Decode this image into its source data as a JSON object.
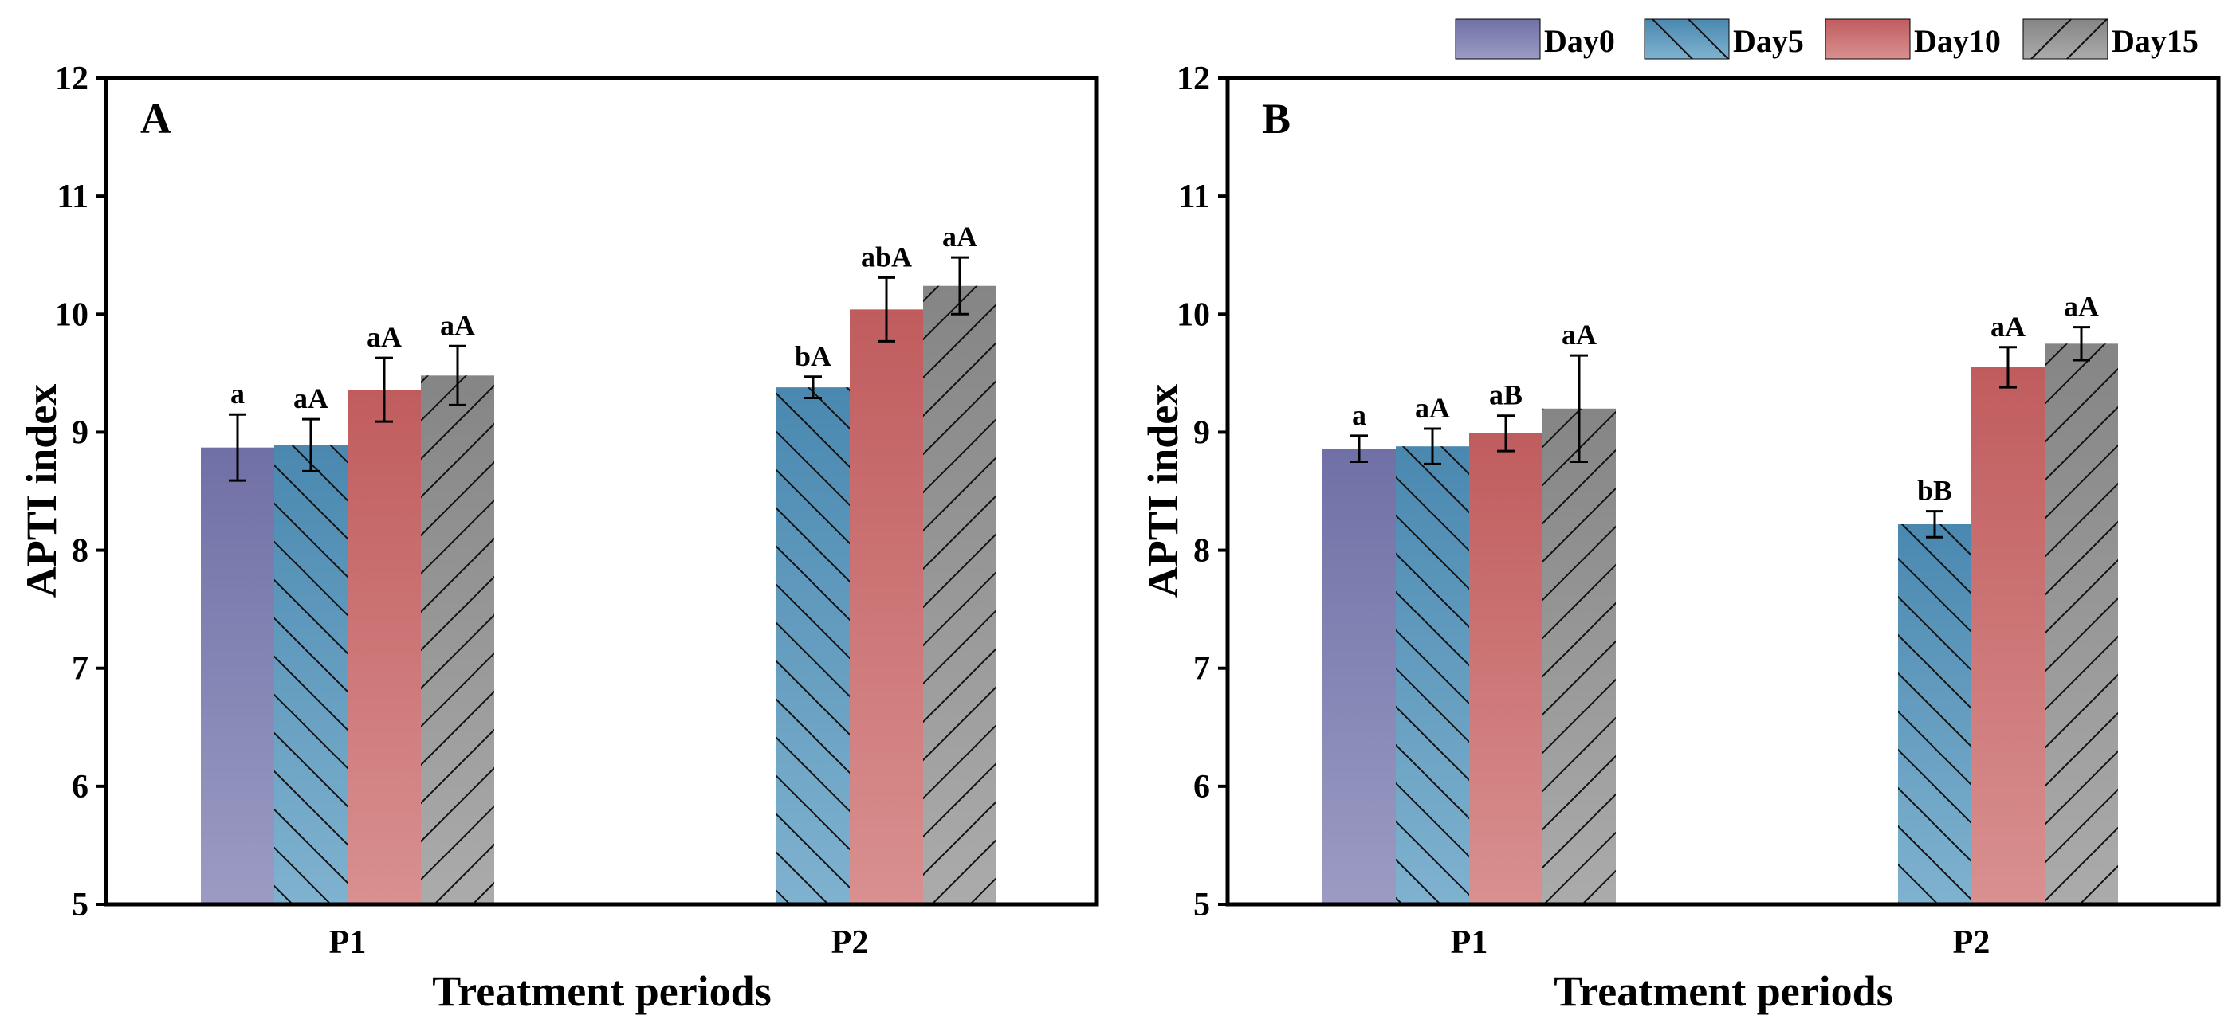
{
  "legend": [
    {
      "key": "day0",
      "label": "Day0"
    },
    {
      "key": "day5",
      "label": "Day5"
    },
    {
      "key": "day10",
      "label": "Day10"
    },
    {
      "key": "day15",
      "label": "Day15"
    }
  ],
  "series_style": {
    "day0": {
      "top": "#7070a6",
      "bottom": "#9b9bc4",
      "hatch": "none"
    },
    "day5": {
      "top": "#4a88b0",
      "bottom": "#7fb2cf",
      "hatch": "backslash"
    },
    "day10": {
      "top": "#c05c5e",
      "bottom": "#d99090",
      "hatch": "none"
    },
    "day15": {
      "top": "#858585",
      "bottom": "#ababab",
      "hatch": "slash"
    }
  },
  "chart_data": [
    {
      "type": "bar",
      "panel_label": "A",
      "xlabel": "Treatment periods",
      "ylabel": "APTI index",
      "ylim": [
        5,
        12
      ],
      "yticks": [
        "5",
        "6",
        "7",
        "8",
        "9",
        "10",
        "11",
        "12"
      ],
      "categories": [
        "P1",
        "P2"
      ],
      "series": [
        {
          "key": "day0",
          "name": "Day0",
          "values": [
            8.87,
            null
          ],
          "errors": [
            0.28,
            null
          ],
          "labels": [
            "a",
            null
          ]
        },
        {
          "key": "day5",
          "name": "Day5",
          "values": [
            8.89,
            9.38
          ],
          "errors": [
            0.22,
            0.09
          ],
          "labels": [
            "aA",
            "bA"
          ]
        },
        {
          "key": "day10",
          "name": "Day10",
          "values": [
            9.36,
            10.04
          ],
          "errors": [
            0.27,
            0.27
          ],
          "labels": [
            "aA",
            "abA"
          ]
        },
        {
          "key": "day15",
          "name": "Day15",
          "values": [
            9.48,
            10.24
          ],
          "errors": [
            0.25,
            0.24
          ],
          "labels": [
            "aA",
            "aA"
          ]
        }
      ]
    },
    {
      "type": "bar",
      "panel_label": "B",
      "xlabel": "Treatment periods",
      "ylabel": "APTI index",
      "ylim": [
        5,
        12
      ],
      "yticks": [
        "5",
        "6",
        "7",
        "8",
        "9",
        "10",
        "11",
        "12"
      ],
      "categories": [
        "P1",
        "P2"
      ],
      "series": [
        {
          "key": "day0",
          "name": "Day0",
          "values": [
            8.86,
            null
          ],
          "errors": [
            0.11,
            null
          ],
          "labels": [
            "a",
            null
          ]
        },
        {
          "key": "day5",
          "name": "Day5",
          "values": [
            8.88,
            8.22
          ],
          "errors": [
            0.15,
            0.11
          ],
          "labels": [
            "aA",
            "bB"
          ]
        },
        {
          "key": "day10",
          "name": "Day10",
          "values": [
            8.99,
            9.55
          ],
          "errors": [
            0.15,
            0.17
          ],
          "labels": [
            "aB",
            "aA"
          ]
        },
        {
          "key": "day15",
          "name": "Day15",
          "values": [
            9.2,
            9.75
          ],
          "errors": [
            0.45,
            0.14
          ],
          "labels": [
            "aA",
            "aA"
          ]
        }
      ]
    }
  ]
}
